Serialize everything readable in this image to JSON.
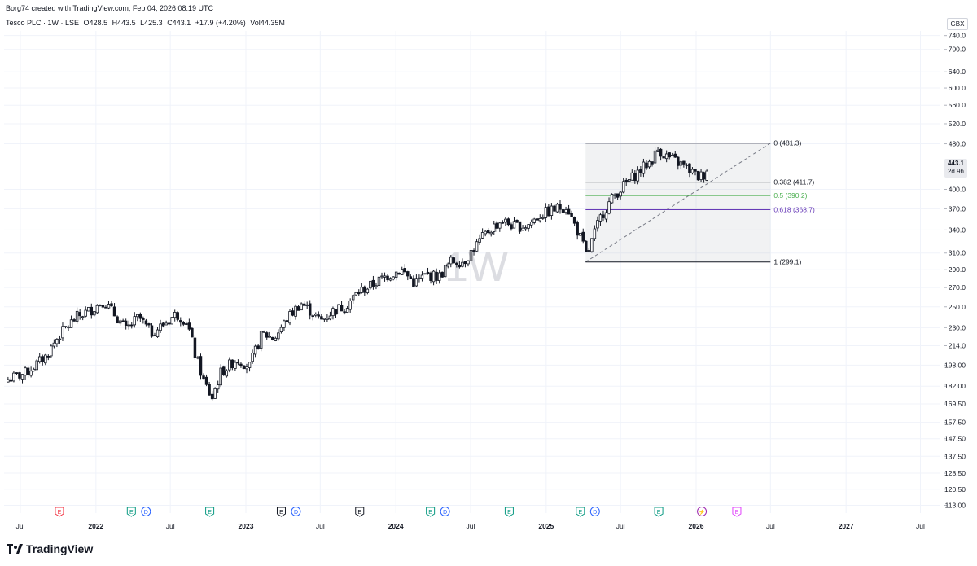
{
  "header": {
    "credit": "Borg74 created with TradingView.com, Feb 04, 2026 08:19 UTC",
    "symbol_line": "Tesco PLC · 1W · LSE",
    "open": "O428.5",
    "high": "H443.5",
    "low": "L425.3",
    "close": "C443.1",
    "change": "+17.9 (+4.20%)",
    "volume": "Vol44.35M"
  },
  "currency_button": "GBX",
  "last_price": {
    "value": "443.1",
    "countdown": "2d 9h"
  },
  "watermark": "1W",
  "brand": "TradingView",
  "chart_data": {
    "type": "candlestick",
    "interval": "1W",
    "scale": "log",
    "y_range": [
      110,
      770
    ],
    "y_ticks": [
      "740.0",
      "700.0",
      "640.0",
      "600.0",
      "560.0",
      "520.0",
      "480.0",
      "400.0",
      "370.0",
      "340.0",
      "310.0",
      "290.0",
      "270.0",
      "250.0",
      "230.0",
      "214.0",
      "198.00",
      "182.00",
      "169.50",
      "157.50",
      "147.50",
      "137.50",
      "128.50",
      "120.50",
      "113.00"
    ],
    "x_ticks": [
      {
        "label": "Jul",
        "date": "2021-07-01",
        "bold": false
      },
      {
        "label": "2022",
        "date": "2022-01-01",
        "bold": true
      },
      {
        "label": "Jul",
        "date": "2022-07-01",
        "bold": false
      },
      {
        "label": "2023",
        "date": "2023-01-01",
        "bold": true
      },
      {
        "label": "Jul",
        "date": "2023-07-01",
        "bold": false
      },
      {
        "label": "2024",
        "date": "2024-01-01",
        "bold": true
      },
      {
        "label": "Jul",
        "date": "2024-07-01",
        "bold": false
      },
      {
        "label": "2025",
        "date": "2025-01-01",
        "bold": true
      },
      {
        "label": "Jul",
        "date": "2025-07-01",
        "bold": false
      },
      {
        "label": "2026",
        "date": "2026-01-01",
        "bold": true
      },
      {
        "label": "Jul",
        "date": "2026-07-01",
        "bold": false
      },
      {
        "label": "2027",
        "date": "2027-01-01",
        "bold": true
      },
      {
        "label": "Jul",
        "date": "2027-07-01",
        "bold": false
      }
    ],
    "price_path": [
      [
        "2021-06-01",
        187
      ],
      [
        "2021-07-15",
        192
      ],
      [
        "2021-09-01",
        205
      ],
      [
        "2021-10-01",
        222
      ],
      [
        "2021-11-15",
        240
      ],
      [
        "2021-12-20",
        247
      ],
      [
        "2022-01-20",
        256
      ],
      [
        "2022-02-20",
        240
      ],
      [
        "2022-03-15",
        228
      ],
      [
        "2022-04-15",
        240
      ],
      [
        "2022-05-15",
        225
      ],
      [
        "2022-06-15",
        233
      ],
      [
        "2022-07-15",
        243
      ],
      [
        "2022-08-10",
        236
      ],
      [
        "2022-08-30",
        207
      ],
      [
        "2022-09-20",
        186
      ],
      [
        "2022-10-10",
        173
      ],
      [
        "2022-11-01",
        192
      ],
      [
        "2022-12-10",
        203
      ],
      [
        "2023-01-10",
        197
      ],
      [
        "2023-02-10",
        225
      ],
      [
        "2023-03-10",
        220
      ],
      [
        "2023-04-15",
        240
      ],
      [
        "2023-05-15",
        254
      ],
      [
        "2023-06-10",
        245
      ],
      [
        "2023-07-01",
        236
      ],
      [
        "2023-08-01",
        246
      ],
      [
        "2023-09-01",
        251
      ],
      [
        "2023-10-01",
        265
      ],
      [
        "2023-11-01",
        272
      ],
      [
        "2023-12-10",
        283
      ],
      [
        "2024-01-15",
        290
      ],
      [
        "2024-02-15",
        275
      ],
      [
        "2024-03-15",
        284
      ],
      [
        "2024-04-15",
        282
      ],
      [
        "2024-05-15",
        300
      ],
      [
        "2024-06-15",
        300
      ],
      [
        "2024-07-15",
        320
      ],
      [
        "2024-08-15",
        340
      ],
      [
        "2024-09-15",
        353
      ],
      [
        "2024-10-15",
        345
      ],
      [
        "2024-11-15",
        346
      ],
      [
        "2024-12-15",
        360
      ],
      [
        "2025-01-15",
        368
      ],
      [
        "2025-02-20",
        375
      ],
      [
        "2025-03-05",
        355
      ],
      [
        "2025-03-25",
        330
      ],
      [
        "2025-04-10",
        305
      ],
      [
        "2025-04-25",
        330
      ],
      [
        "2025-05-15",
        360
      ],
      [
        "2025-06-15",
        390
      ],
      [
        "2025-07-15",
        410
      ],
      [
        "2025-08-15",
        430
      ],
      [
        "2025-09-15",
        450
      ],
      [
        "2025-10-01",
        470
      ],
      [
        "2025-10-15",
        460
      ],
      [
        "2025-11-10",
        448
      ],
      [
        "2025-12-01",
        440
      ],
      [
        "2025-12-20",
        430
      ],
      [
        "2026-01-05",
        420
      ],
      [
        "2026-01-20",
        425
      ],
      [
        "2026-02-02",
        443
      ]
    ],
    "fibonacci": {
      "start_date": "2025-04-07",
      "end_date": "2026-07-01",
      "levels": [
        {
          "ratio": "0",
          "price": 481.3,
          "label": "0 (481.3)",
          "color": "#131722"
        },
        {
          "ratio": "0.382",
          "price": 411.7,
          "label": "0.382 (411.7)",
          "color": "#131722"
        },
        {
          "ratio": "0.5",
          "price": 390.2,
          "label": "0.5 (390.2)",
          "color": "#4caf50"
        },
        {
          "ratio": "0.618",
          "price": 368.7,
          "label": "0.618 (368.7)",
          "color": "#673ab7"
        },
        {
          "ratio": "1",
          "price": 299.1,
          "label": "1 (299.1)",
          "color": "#131722"
        }
      ]
    },
    "events": [
      {
        "date": "2021-10-04",
        "icons": [
          {
            "t": "E",
            "c": "#f23645"
          }
        ]
      },
      {
        "date": "2022-04-15",
        "icons": [
          {
            "t": "E",
            "c": "#089981"
          },
          {
            "t": "D",
            "c": "#2962ff"
          }
        ]
      },
      {
        "date": "2022-10-05",
        "icons": [
          {
            "t": "E",
            "c": "#089981"
          }
        ]
      },
      {
        "date": "2023-04-15",
        "icons": [
          {
            "t": "E",
            "c": "#131722"
          },
          {
            "t": "D",
            "c": "#2962ff"
          }
        ]
      },
      {
        "date": "2023-10-05",
        "icons": [
          {
            "t": "E",
            "c": "#131722"
          }
        ]
      },
      {
        "date": "2024-04-12",
        "icons": [
          {
            "t": "E",
            "c": "#089981"
          },
          {
            "t": "D",
            "c": "#2962ff"
          }
        ]
      },
      {
        "date": "2024-10-03",
        "icons": [
          {
            "t": "E",
            "c": "#089981"
          }
        ]
      },
      {
        "date": "2025-04-12",
        "icons": [
          {
            "t": "E",
            "c": "#089981"
          },
          {
            "t": "D",
            "c": "#2962ff"
          }
        ]
      },
      {
        "date": "2025-10-02",
        "icons": [
          {
            "t": "E",
            "c": "#089981"
          }
        ]
      },
      {
        "date": "2026-01-15",
        "icons": [
          {
            "t": "⚡",
            "c": "#9c27b0"
          }
        ]
      },
      {
        "date": "2026-04-10",
        "icons": [
          {
            "t": "E",
            "c": "#e040fb"
          }
        ]
      }
    ]
  }
}
